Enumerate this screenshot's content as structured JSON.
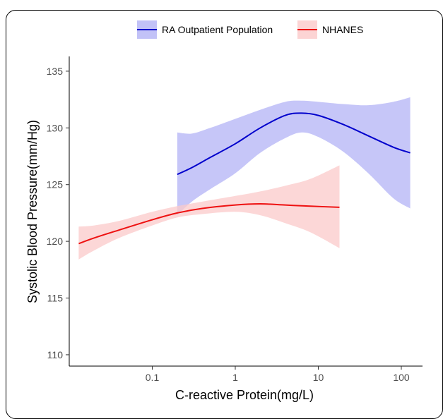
{
  "chart_data": {
    "type": "line",
    "title": "",
    "xlabel": "C-reactive Protein(mg/L)",
    "ylabel": "Systolic Blood Pressure(mm/Hg)",
    "x_scale": "log10",
    "xlim": [
      0.01,
      180
    ],
    "ylim": [
      109,
      136.3
    ],
    "x_ticks": [
      0.1,
      1,
      10,
      100
    ],
    "x_tick_labels": [
      "0.1",
      "1",
      "10",
      "100"
    ],
    "y_ticks": [
      110,
      115,
      120,
      125,
      130,
      135
    ],
    "y_tick_labels": [
      "110",
      "115",
      "120",
      "125",
      "130",
      "135"
    ],
    "grid": false,
    "legend_position": "top",
    "series": [
      {
        "name": "RA Outpatient Population",
        "color": "#0000cc",
        "band_color": "#b3b3f5",
        "x": [
          0.2,
          0.3,
          0.5,
          1,
          2,
          4,
          6.3,
          10,
          20,
          40,
          80,
          128
        ],
        "y": [
          125.9,
          126.5,
          127.4,
          128.6,
          130.0,
          131.1,
          131.3,
          131.1,
          130.3,
          129.3,
          128.3,
          127.8
        ],
        "lower": [
          122.3,
          123.5,
          124.6,
          126.0,
          127.8,
          129.1,
          129.6,
          129.2,
          127.9,
          126.0,
          123.8,
          122.9
        ],
        "upper": [
          129.6,
          129.5,
          130.0,
          130.8,
          131.6,
          132.3,
          132.4,
          132.3,
          132.1,
          132.0,
          132.3,
          132.7
        ]
      },
      {
        "name": "NHANES",
        "color": "#ee1111",
        "band_color": "#fbc9c9",
        "x": [
          0.013,
          0.02,
          0.04,
          0.1,
          0.2,
          0.4,
          1,
          2,
          4,
          8,
          18
        ],
        "y": [
          119.8,
          120.3,
          121.0,
          121.9,
          122.5,
          122.9,
          123.2,
          123.3,
          123.2,
          123.1,
          123.0
        ],
        "lower": [
          118.4,
          119.2,
          120.3,
          121.4,
          122.1,
          122.4,
          122.6,
          122.3,
          121.6,
          120.8,
          119.4
        ],
        "upper": [
          121.3,
          121.4,
          121.8,
          122.6,
          123.1,
          123.5,
          124.0,
          124.4,
          124.9,
          125.5,
          126.7
        ]
      }
    ]
  }
}
